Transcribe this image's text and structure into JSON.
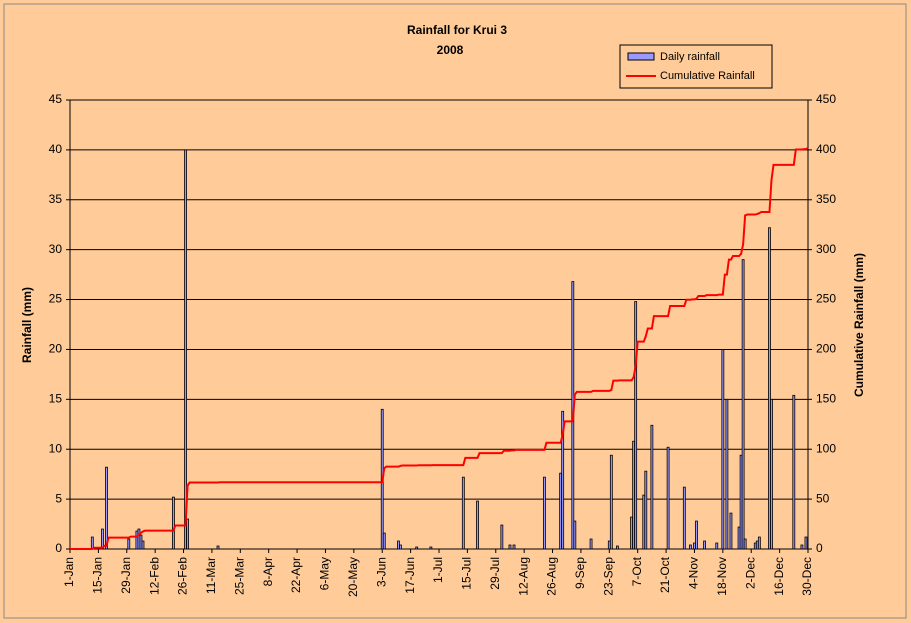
{
  "chart_data": {
    "type": "bar-line",
    "title": "Rainfall for Krui 3",
    "subtitle": "2008",
    "y_label": "Rainfall (mm)",
    "y2_label": "Cumulative Rainfall (mm)",
    "xticks": [
      "1-Jan",
      "15-Jan",
      "29-Jan",
      "12-Feb",
      "26-Feb",
      "11-Mar",
      "25-Mar",
      "8-Apr",
      "22-Apr",
      "6-May",
      "20-May",
      "3-Jun",
      "17-Jun",
      "1-Jul",
      "15-Jul",
      "29-Jul",
      "12-Aug",
      "26-Aug",
      "9-Sep",
      "23-Sep",
      "7-Oct",
      "21-Oct",
      "4-Nov",
      "18-Nov",
      "2-Dec",
      "16-Dec",
      "30-Dec"
    ],
    "x": [
      "12-Jan",
      "17-Jan",
      "19-Jan",
      "30-Jan",
      "3-Feb",
      "4-Feb",
      "5-Feb",
      "6-Feb",
      "21-Feb",
      "27-Feb",
      "28-Feb",
      "14-Mar",
      "3-Jun",
      "4-Jun",
      "11-Jun",
      "12-Jun",
      "20-Jun",
      "27-Jun",
      "13-Jul",
      "20-Jul",
      "1-Aug",
      "5-Aug",
      "7-Aug",
      "22-Aug",
      "30-Aug",
      "31-Aug",
      "5-Sep",
      "6-Sep",
      "14-Sep",
      "23-Sep",
      "24-Sep",
      "27-Sep",
      "4-Oct",
      "5-Oct",
      "6-Oct",
      "10-Oct",
      "11-Oct",
      "14-Oct",
      "22-Oct",
      "30-Oct",
      "2-Nov",
      "4-Nov",
      "5-Nov",
      "9-Nov",
      "15-Nov",
      "18-Nov",
      "20-Nov",
      "22-Nov",
      "26-Nov",
      "27-Nov",
      "28-Nov",
      "29-Nov",
      "4-Dec",
      "5-Dec",
      "6-Dec",
      "11-Dec",
      "12-Dec",
      "23-Dec",
      "27-Dec",
      "29-Dec"
    ],
    "series": [
      {
        "name": "Daily rainfall",
        "color": "#9999ff",
        "values": [
          1.2,
          2,
          8.2,
          1,
          1.8,
          2,
          1.4,
          0.8,
          5.2,
          40,
          3,
          0.3,
          14,
          1.6,
          0.8,
          0.4,
          0.2,
          0.2,
          7.2,
          4.8,
          2.4,
          0.4,
          0.4,
          7.2,
          7.6,
          13.8,
          26.8,
          2.8,
          1,
          0.8,
          9.4,
          0.3,
          3.2,
          10.8,
          24.8,
          5.4,
          7.8,
          12.4,
          10.2,
          6.2,
          0.4,
          0.6,
          2.8,
          0.8,
          0.6,
          20,
          15,
          3.6,
          2.2,
          9.4,
          29,
          1,
          0.6,
          0.8,
          1.2,
          32.2,
          15,
          15.4,
          0.4,
          1.2
        ]
      },
      {
        "name": "Cumulative Rainfall",
        "color": "#ff0000",
        "axis": "y2"
      }
    ],
    "ylim": [
      0,
      45
    ],
    "yticks": [
      0,
      5,
      10,
      15,
      20,
      25,
      30,
      35,
      40,
      45
    ],
    "y2lim": [
      0,
      450
    ],
    "y2ticks": [
      0,
      50,
      100,
      150,
      200,
      250,
      300,
      350,
      400,
      450
    ],
    "grid": true,
    "legend": "top-right"
  }
}
